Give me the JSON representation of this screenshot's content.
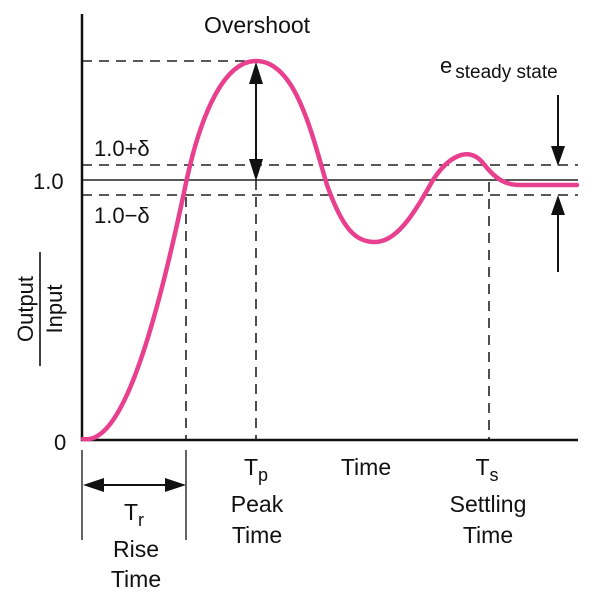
{
  "labels": {
    "overshoot": "Overshoot",
    "e_main": "e",
    "e_sub": "steady state",
    "upper_band": "1.0+δ",
    "lower_band": "1.0−δ",
    "one": "1.0",
    "zero": "0",
    "y_numerator": "Output",
    "y_denominator": "Input",
    "x_label": "Time",
    "tr_main": "T",
    "tr_sub": "r",
    "rise_line1": "Rise",
    "rise_line2": "Time",
    "tp_main": "T",
    "tp_sub": "p",
    "peak_line1": "Peak",
    "peak_line2": "Time",
    "ts_main": "T",
    "ts_sub": "s",
    "settling_line1": "Settling",
    "settling_line2": "Time"
  },
  "colors": {
    "curve": "#e8408e",
    "line": "#222222"
  }
}
